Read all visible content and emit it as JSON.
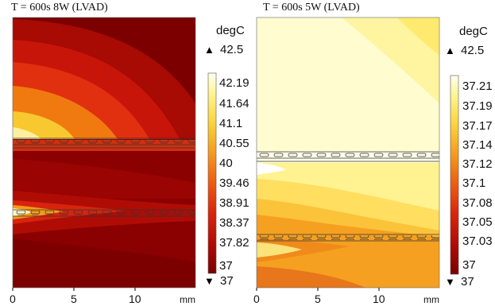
{
  "panels": [
    {
      "title": "T = 600s   8W (LVAD)",
      "unit": "degC",
      "max_label": "42.5",
      "min_label": "37",
      "colorbar_ticks": [
        "42.19",
        "41.64",
        "41.1",
        "40.55",
        "40",
        "39.46",
        "38.91",
        "38.37",
        "37.82",
        "37"
      ],
      "x_ticks": [
        "0",
        "5",
        "10"
      ],
      "x_unit": "mm"
    },
    {
      "title": "T = 600s   5W (LVAD)",
      "unit": "degC",
      "max_label": "42.5",
      "min_label": "37",
      "colorbar_ticks": [
        "37.21",
        "37.19",
        "37.17",
        "37.14",
        "37.12",
        "37.1",
        "37.08",
        "37.05",
        "37.03",
        "37"
      ],
      "x_ticks": [
        "0",
        "5",
        "10"
      ],
      "x_unit": "mm"
    }
  ],
  "chart_data": [
    {
      "type": "heatmap",
      "title": "T = 600s 8W (LVAD)",
      "colorbar_label": "degC",
      "range": [
        37,
        42.5
      ],
      "colorbar_ticks": [
        42.19,
        41.64,
        41.1,
        40.55,
        40,
        39.46,
        38.91,
        38.37,
        37.82,
        37
      ],
      "x_ticks": [
        0,
        5,
        10
      ],
      "xlabel": "mm"
    },
    {
      "type": "heatmap",
      "title": "T = 600s 5W (LVAD)",
      "colorbar_label": "degC",
      "range": [
        37,
        42.5
      ],
      "colorbar_ticks": [
        37.21,
        37.19,
        37.17,
        37.14,
        37.12,
        37.1,
        37.08,
        37.05,
        37.03,
        37
      ],
      "x_ticks": [
        0,
        5,
        10
      ],
      "xlabel": "mm"
    }
  ],
  "colors": {
    "dark_red": "#8b0000",
    "red": "#c8150a",
    "bright_red": "#e63212",
    "orange": "#f07a10",
    "yellow_orange": "#f8c830",
    "pale_yellow": "#fffbc4",
    "white": "#ffffff"
  }
}
